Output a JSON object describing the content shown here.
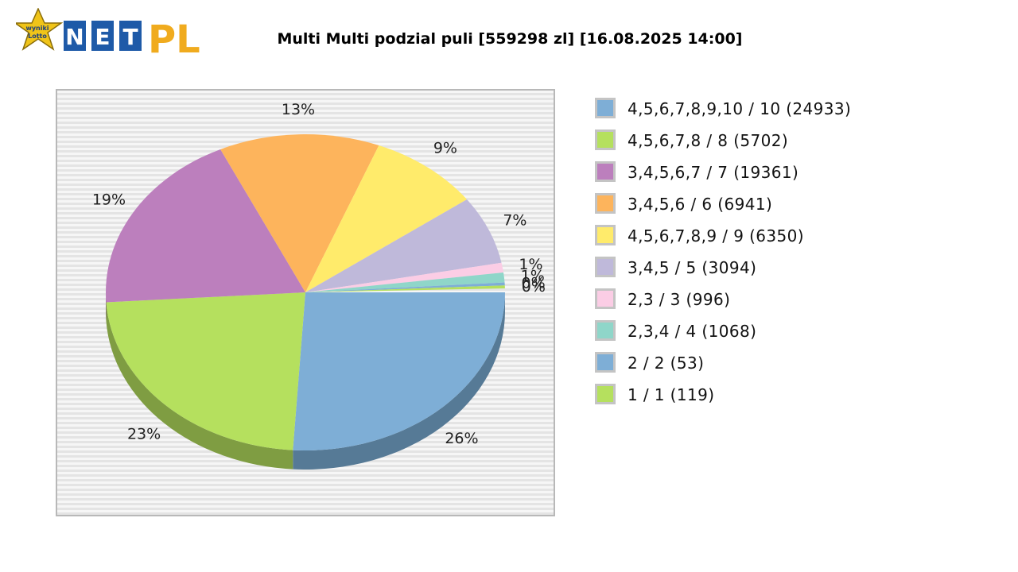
{
  "logo": {
    "badge_line1": "wyniki",
    "badge_line2": "Lotto",
    "letters": [
      "N",
      "E",
      "T"
    ],
    "suffix": "PL",
    "colors": {
      "star": "#f0c419",
      "box": "#1e5aa8",
      "pl": "#f0ab1e"
    }
  },
  "chart_data": {
    "type": "pie",
    "title": "Multi Multi podzial puli [559298 zl] [16.08.2025 14:00]",
    "start_angle_deg": 0,
    "direction": "clockwise",
    "legend_position": "right",
    "slices": [
      {
        "label": "4,5,6,7,8,9,10 / 10 (24933)",
        "value": 24933,
        "pct_label": "26%",
        "color": "#7eaed6",
        "side": "#567a96"
      },
      {
        "label": "4,5,6,7,8 / 8 (5702)",
        "value": 5702,
        "pct_label": "23%",
        "color": "#b5e05e",
        "side": "#7f9d42"
      },
      {
        "label": "3,4,5,6,7 / 7 (19361)",
        "value": 19361,
        "pct_label": "19%",
        "color": "#bc7fbd",
        "side": "#845984"
      },
      {
        "label": "3,4,5,6 / 6 (6941)",
        "value": 6941,
        "pct_label": "13%",
        "color": "#fdb45c",
        "side": "#b17e40"
      },
      {
        "label": "4,5,6,7,8,9 / 9 (6350)",
        "value": 6350,
        "pct_label": "9%",
        "color": "#ffeb6b",
        "side": "#b3a54b"
      },
      {
        "label": "3,4,5 / 5 (3094)",
        "value": 3094,
        "pct_label": "7%",
        "color": "#bfb9da",
        "side": "#868299"
      },
      {
        "label": "2,3 / 3 (996)",
        "value": 996,
        "pct_label": "1%",
        "color": "#fbcde5",
        "side": "#b090a0"
      },
      {
        "label": "2,3,4 / 4 (1068)",
        "value": 1068,
        "pct_label": "1%",
        "color": "#8fd6c9",
        "side": "#64968d"
      },
      {
        "label": "2 / 2 (53)",
        "value": 53,
        "pct_label": "0%",
        "color": "#7eaed6",
        "side": "#567a96"
      },
      {
        "label": "1 / 1 (119)",
        "value": 119,
        "pct_label": "0%",
        "color": "#b5e05e",
        "side": "#7f9d42"
      }
    ],
    "drawn_fractions": [
      0.26,
      0.23,
      0.19,
      0.13,
      0.09,
      0.07,
      0.01,
      0.01,
      0.003,
      0.003
    ]
  }
}
